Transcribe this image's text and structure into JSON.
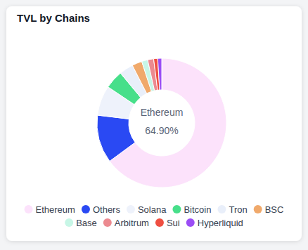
{
  "chart_data": {
    "type": "donut",
    "title": "TVL by Chains",
    "categories": [
      "Ethereum",
      "Others",
      "Solana",
      "Bitcoin",
      "Tron",
      "BSC",
      "Base",
      "Arbitrum",
      "Sui",
      "Hyperliquid"
    ],
    "values": [
      64.9,
      12,
      7.5,
      4.6,
      3.5,
      2.5,
      1.5,
      1.5,
      1,
      1
    ],
    "colors": [
      "#fce2fb",
      "#2a49f3",
      "#eef2fb",
      "#47df8a",
      "#e9effa",
      "#f0a96b",
      "#c7f6e6",
      "#ec8a90",
      "#ef4f42",
      "#9b4df5"
    ],
    "center_label": {
      "text": "Ethereum",
      "value_label": "64.90%"
    },
    "legend": "bottom"
  }
}
